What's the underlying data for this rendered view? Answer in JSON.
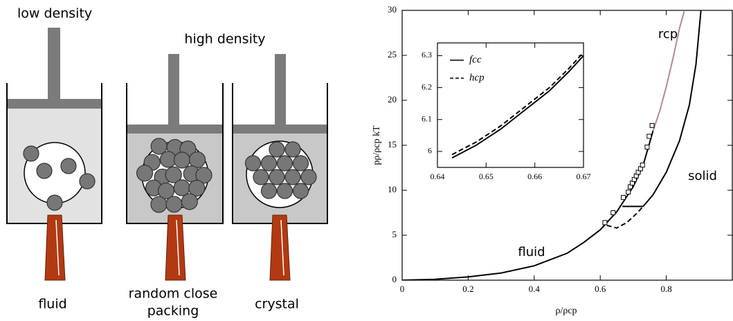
{
  "diagram": {
    "labels": {
      "low_density": "low density",
      "high_density": "high density",
      "fluid": "fluid",
      "rcp_line1": "random close",
      "rcp_line2": "packing",
      "crystal": "crystal"
    }
  },
  "chart_data": [
    {
      "type": "line",
      "x_label": "ρ/ρcp",
      "y_label": "pρ/ρcp kT",
      "xlim": [
        0,
        1
      ],
      "xticks": [
        0,
        0.2,
        0.4,
        0.6,
        0.8
      ],
      "ylim": [
        0,
        30
      ],
      "yticks": [
        0,
        5,
        10,
        15,
        20,
        25,
        30
      ],
      "annotations": [
        "rcp",
        "solid",
        "fluid"
      ],
      "series": [
        {
          "color": "#000000",
          "style": "solid",
          "x": [
            0,
            0.1,
            0.2,
            0.3,
            0.4,
            0.5,
            0.55,
            0.6,
            0.65,
            0.7,
            0.73,
            0.76
          ],
          "values": [
            0,
            0.1,
            0.36,
            0.8,
            1.6,
            3.0,
            4.2,
            5.6,
            7.6,
            10.4,
            12.8,
            16.6
          ]
        },
        {
          "color": "#b58a86",
          "style": "solid",
          "x": [
            0.76,
            0.78,
            0.8,
            0.82,
            0.84,
            0.855
          ],
          "values": [
            16.6,
            18.8,
            21.5,
            24.6,
            28.0,
            30.0
          ]
        },
        {
          "color": "#000000",
          "style": "solid",
          "x": [
            0.73,
            0.76,
            0.8,
            0.84,
            0.87,
            0.89,
            0.905
          ],
          "values": [
            8.2,
            9.5,
            12.0,
            15.5,
            19.5,
            24.0,
            30.0
          ]
        },
        {
          "color": "#000000",
          "style": "dashed",
          "x": [
            0.62,
            0.65,
            0.68,
            0.71,
            0.73
          ],
          "values": [
            6.1,
            5.8,
            6.4,
            7.4,
            8.2
          ]
        },
        {
          "color": "#000000",
          "style": "solid",
          "x": [
            0.667,
            0.73
          ],
          "values": [
            8.2,
            8.2
          ]
        },
        {
          "color": "#000000",
          "style": "markers",
          "x": [
            0.614,
            0.639,
            0.67,
            0.685,
            0.691,
            0.697,
            0.703,
            0.709,
            0.715,
            0.722,
            0.728,
            0.742,
            0.748,
            0.757
          ],
          "values": [
            6.4,
            7.5,
            9.2,
            9.8,
            10.4,
            10.8,
            11.2,
            11.6,
            12.0,
            12.4,
            12.8,
            14.8,
            16.0,
            17.2
          ]
        }
      ]
    },
    {
      "type": "line",
      "xlim": [
        0.64,
        0.67
      ],
      "xticks": [
        0.64,
        0.65,
        0.66,
        0.67
      ],
      "ylim": [
        5.95,
        6.34
      ],
      "yticks": [
        6,
        6.1,
        6.2,
        6.3
      ],
      "x": [
        0.643,
        0.648,
        0.653,
        0.658,
        0.663,
        0.667,
        0.67
      ],
      "series": [
        {
          "name": "fcc",
          "color": "#000000",
          "style": "solid",
          "values": [
            5.98,
            6.02,
            6.07,
            6.13,
            6.19,
            6.25,
            6.3
          ]
        },
        {
          "name": "hcp",
          "color": "#000000",
          "style": "dashed",
          "values": [
            5.99,
            6.03,
            6.08,
            6.14,
            6.2,
            6.26,
            6.31
          ]
        }
      ]
    }
  ]
}
